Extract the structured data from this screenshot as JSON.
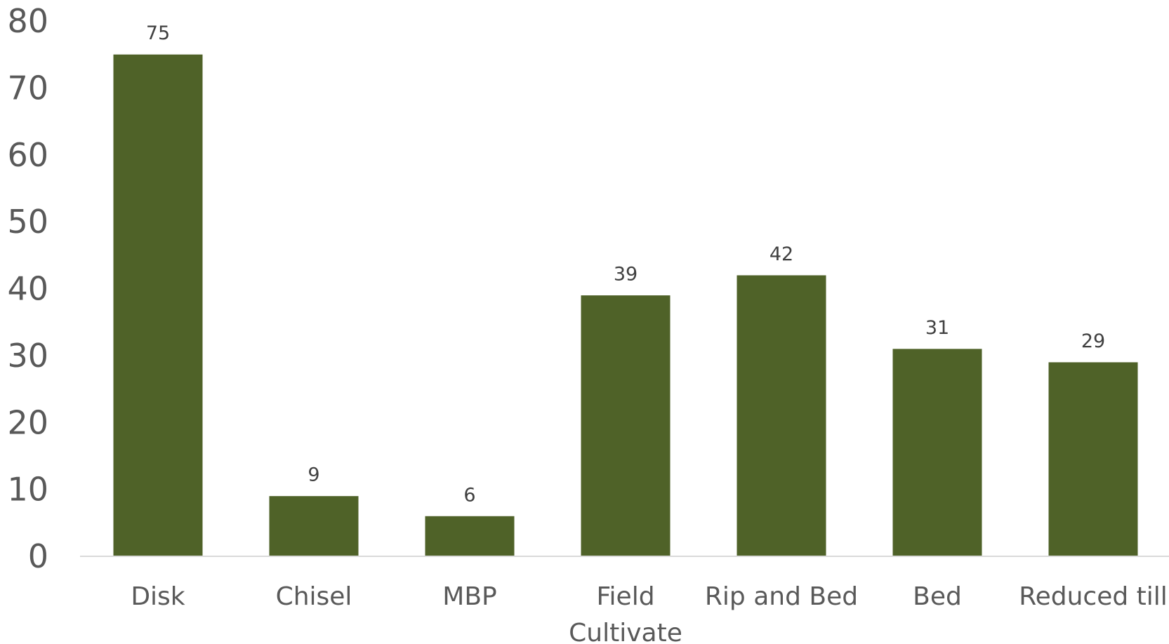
{
  "chart_data": {
    "type": "bar",
    "title": "",
    "xlabel": "",
    "ylabel": "",
    "categories": [
      "Disk",
      "Chisel",
      "MBP",
      "Field Cultivate",
      "Rip and Bed",
      "Bed",
      "Reduced till"
    ],
    "category_lines": [
      [
        "Disk"
      ],
      [
        "Chisel"
      ],
      [
        "MBP"
      ],
      [
        "Field",
        "Cultivate"
      ],
      [
        "Rip and Bed"
      ],
      [
        "Bed"
      ],
      [
        "Reduced till"
      ]
    ],
    "values": [
      75,
      9,
      6,
      39,
      42,
      31,
      29
    ],
    "yticks": [
      0,
      10,
      20,
      30,
      40,
      50,
      60,
      70,
      80
    ],
    "ylim": [
      0,
      80
    ],
    "grid": false,
    "legend": "none",
    "bar_color": "#4f6228",
    "axis_color": "#d9d9d9"
  }
}
